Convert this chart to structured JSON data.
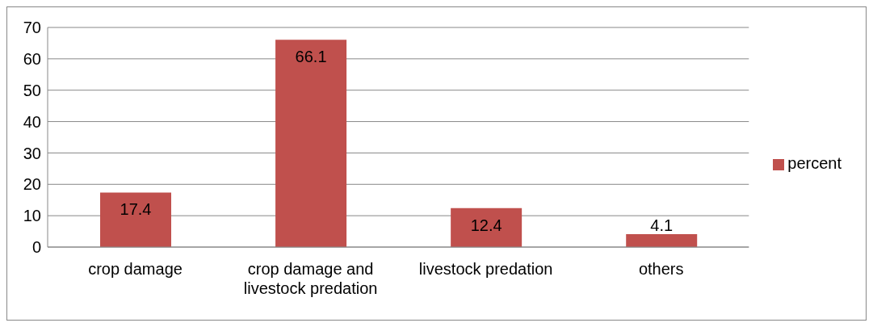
{
  "chart_data": {
    "type": "bar",
    "categories": [
      "crop damage",
      "crop damage and livestock predation",
      "livestock predation",
      "others"
    ],
    "series": [
      {
        "name": "percent",
        "color": "#c0504d",
        "values": [
          17.4,
          66.1,
          12.4,
          4.1
        ]
      }
    ],
    "ylim": [
      0,
      70
    ],
    "yticks": [
      0,
      10,
      20,
      30,
      40,
      50,
      60,
      70
    ],
    "grid": "y",
    "legend": "right",
    "data_labels": true
  }
}
